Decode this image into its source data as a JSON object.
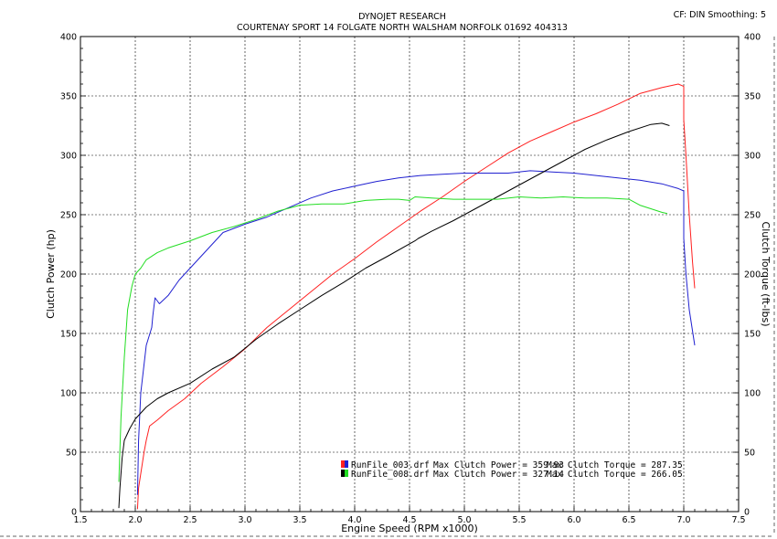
{
  "header": {
    "title": "DYNOJET RESEARCH",
    "subtitle": "COURTENAY SPORT 14 FOLGATE NORTH WALSHAM NORFOLK 01692 404313",
    "settings": "CF: DIN  Smoothing: 5"
  },
  "colors": {
    "run1_power": "#ff2020",
    "run1_torque": "#2020d0",
    "run2_power": "#000000",
    "run2_torque": "#22dd22",
    "background": "#ffffff"
  },
  "legend": [
    {
      "file": "RunFile_003.drf",
      "power_label": "Max Clutch Power = 359.93",
      "torque_label": "Max Clutch Torque = 287.35"
    },
    {
      "file": "RunFile_008.drf",
      "power_label": "Max Clutch Power = 327.14",
      "torque_label": "Max Clutch Torque = 266.05"
    }
  ],
  "chart_data": {
    "type": "line",
    "title": "DYNOJET RESEARCH",
    "xlabel": "Engine Speed (RPM x1000)",
    "ylabel": "Clutch Power (hp)",
    "y2label": "Clutch Torque (ft-lbs)",
    "xlim": [
      1.5,
      7.5
    ],
    "ylim": [
      0,
      400
    ],
    "y2lim": [
      0,
      400
    ],
    "x_ticks": [
      "1.5",
      "2.0",
      "2.5",
      "3.0",
      "3.5",
      "4.0",
      "4.5",
      "5.0",
      "5.5",
      "6.0",
      "6.5",
      "7.0",
      "7.5"
    ],
    "y_ticks": [
      "0",
      "50",
      "100",
      "150",
      "200",
      "250",
      "300",
      "350",
      "400"
    ],
    "grid": true,
    "series": [
      {
        "name": "RunFile_003.drf Clutch Power",
        "color": "#ff2020",
        "points": [
          [
            2.02,
            2
          ],
          [
            2.03,
            20
          ],
          [
            2.08,
            50
          ],
          [
            2.1,
            60
          ],
          [
            2.13,
            72
          ],
          [
            2.2,
            77
          ],
          [
            2.3,
            85
          ],
          [
            2.45,
            95
          ],
          [
            2.6,
            108
          ],
          [
            2.8,
            122
          ],
          [
            3.0,
            137
          ],
          [
            3.2,
            155
          ],
          [
            3.4,
            170
          ],
          [
            3.6,
            185
          ],
          [
            3.8,
            200
          ],
          [
            4.0,
            213
          ],
          [
            4.2,
            227
          ],
          [
            4.4,
            240
          ],
          [
            4.6,
            253
          ],
          [
            4.8,
            265
          ],
          [
            5.0,
            278
          ],
          [
            5.2,
            290
          ],
          [
            5.4,
            302
          ],
          [
            5.6,
            312
          ],
          [
            5.8,
            320
          ],
          [
            6.0,
            328
          ],
          [
            6.2,
            335
          ],
          [
            6.4,
            343
          ],
          [
            6.6,
            352
          ],
          [
            6.8,
            357
          ],
          [
            6.95,
            360
          ],
          [
            7.0,
            358
          ],
          [
            7.0,
            330
          ],
          [
            7.02,
            300
          ],
          [
            7.05,
            250
          ],
          [
            7.08,
            210
          ],
          [
            7.1,
            188
          ]
        ]
      },
      {
        "name": "RunFile_003.drf Clutch Torque",
        "color": "#2020d0",
        "points": [
          [
            2.02,
            14
          ],
          [
            2.03,
            60
          ],
          [
            2.05,
            100
          ],
          [
            2.1,
            140
          ],
          [
            2.15,
            155
          ],
          [
            2.16,
            165
          ],
          [
            2.18,
            180
          ],
          [
            2.22,
            175
          ],
          [
            2.3,
            182
          ],
          [
            2.4,
            195
          ],
          [
            2.5,
            205
          ],
          [
            2.6,
            215
          ],
          [
            2.7,
            225
          ],
          [
            2.8,
            235
          ],
          [
            3.0,
            242
          ],
          [
            3.2,
            248
          ],
          [
            3.4,
            256
          ],
          [
            3.6,
            264
          ],
          [
            3.8,
            270
          ],
          [
            4.0,
            274
          ],
          [
            4.2,
            278
          ],
          [
            4.4,
            281
          ],
          [
            4.6,
            283
          ],
          [
            4.8,
            284
          ],
          [
            5.0,
            285
          ],
          [
            5.2,
            285
          ],
          [
            5.4,
            285
          ],
          [
            5.6,
            287
          ],
          [
            5.8,
            286
          ],
          [
            6.0,
            285
          ],
          [
            6.2,
            283
          ],
          [
            6.4,
            281
          ],
          [
            6.6,
            279
          ],
          [
            6.8,
            276
          ],
          [
            6.95,
            272
          ],
          [
            7.0,
            270
          ],
          [
            7.0,
            230
          ],
          [
            7.02,
            200
          ],
          [
            7.05,
            170
          ],
          [
            7.1,
            140
          ]
        ]
      },
      {
        "name": "RunFile_008.drf Clutch Power",
        "color": "#000000",
        "points": [
          [
            1.85,
            3
          ],
          [
            1.86,
            20
          ],
          [
            1.88,
            45
          ],
          [
            1.9,
            60
          ],
          [
            1.95,
            70
          ],
          [
            2.0,
            78
          ],
          [
            2.1,
            88
          ],
          [
            2.2,
            95
          ],
          [
            2.3,
            100
          ],
          [
            2.5,
            108
          ],
          [
            2.7,
            120
          ],
          [
            2.9,
            130
          ],
          [
            3.1,
            145
          ],
          [
            3.3,
            158
          ],
          [
            3.5,
            170
          ],
          [
            3.7,
            182
          ],
          [
            3.9,
            193
          ],
          [
            4.1,
            205
          ],
          [
            4.3,
            215
          ],
          [
            4.55,
            228
          ],
          [
            4.58,
            230
          ],
          [
            4.7,
            236
          ],
          [
            4.9,
            245
          ],
          [
            5.1,
            255
          ],
          [
            5.3,
            265
          ],
          [
            5.5,
            275
          ],
          [
            5.7,
            285
          ],
          [
            5.9,
            295
          ],
          [
            6.1,
            305
          ],
          [
            6.3,
            313
          ],
          [
            6.5,
            320
          ],
          [
            6.7,
            326
          ],
          [
            6.8,
            327
          ],
          [
            6.87,
            325
          ]
        ]
      },
      {
        "name": "RunFile_008.drf Clutch Torque",
        "color": "#22dd22",
        "points": [
          [
            1.85,
            25
          ],
          [
            1.87,
            80
          ],
          [
            1.9,
            130
          ],
          [
            1.93,
            170
          ],
          [
            1.97,
            190
          ],
          [
            2.0,
            200
          ],
          [
            2.05,
            205
          ],
          [
            2.1,
            212
          ],
          [
            2.2,
            218
          ],
          [
            2.3,
            222
          ],
          [
            2.5,
            228
          ],
          [
            2.7,
            235
          ],
          [
            2.9,
            240
          ],
          [
            3.1,
            246
          ],
          [
            3.3,
            253
          ],
          [
            3.5,
            258
          ],
          [
            3.7,
            259
          ],
          [
            3.9,
            259
          ],
          [
            4.1,
            262
          ],
          [
            4.3,
            263
          ],
          [
            4.4,
            263
          ],
          [
            4.5,
            262
          ],
          [
            4.55,
            265
          ],
          [
            4.7,
            264
          ],
          [
            4.9,
            263
          ],
          [
            5.1,
            263
          ],
          [
            5.3,
            263
          ],
          [
            5.5,
            265
          ],
          [
            5.7,
            264
          ],
          [
            5.9,
            265
          ],
          [
            6.1,
            264
          ],
          [
            6.3,
            264
          ],
          [
            6.5,
            263
          ],
          [
            6.6,
            258
          ],
          [
            6.8,
            252
          ],
          [
            6.85,
            251
          ]
        ]
      }
    ]
  }
}
